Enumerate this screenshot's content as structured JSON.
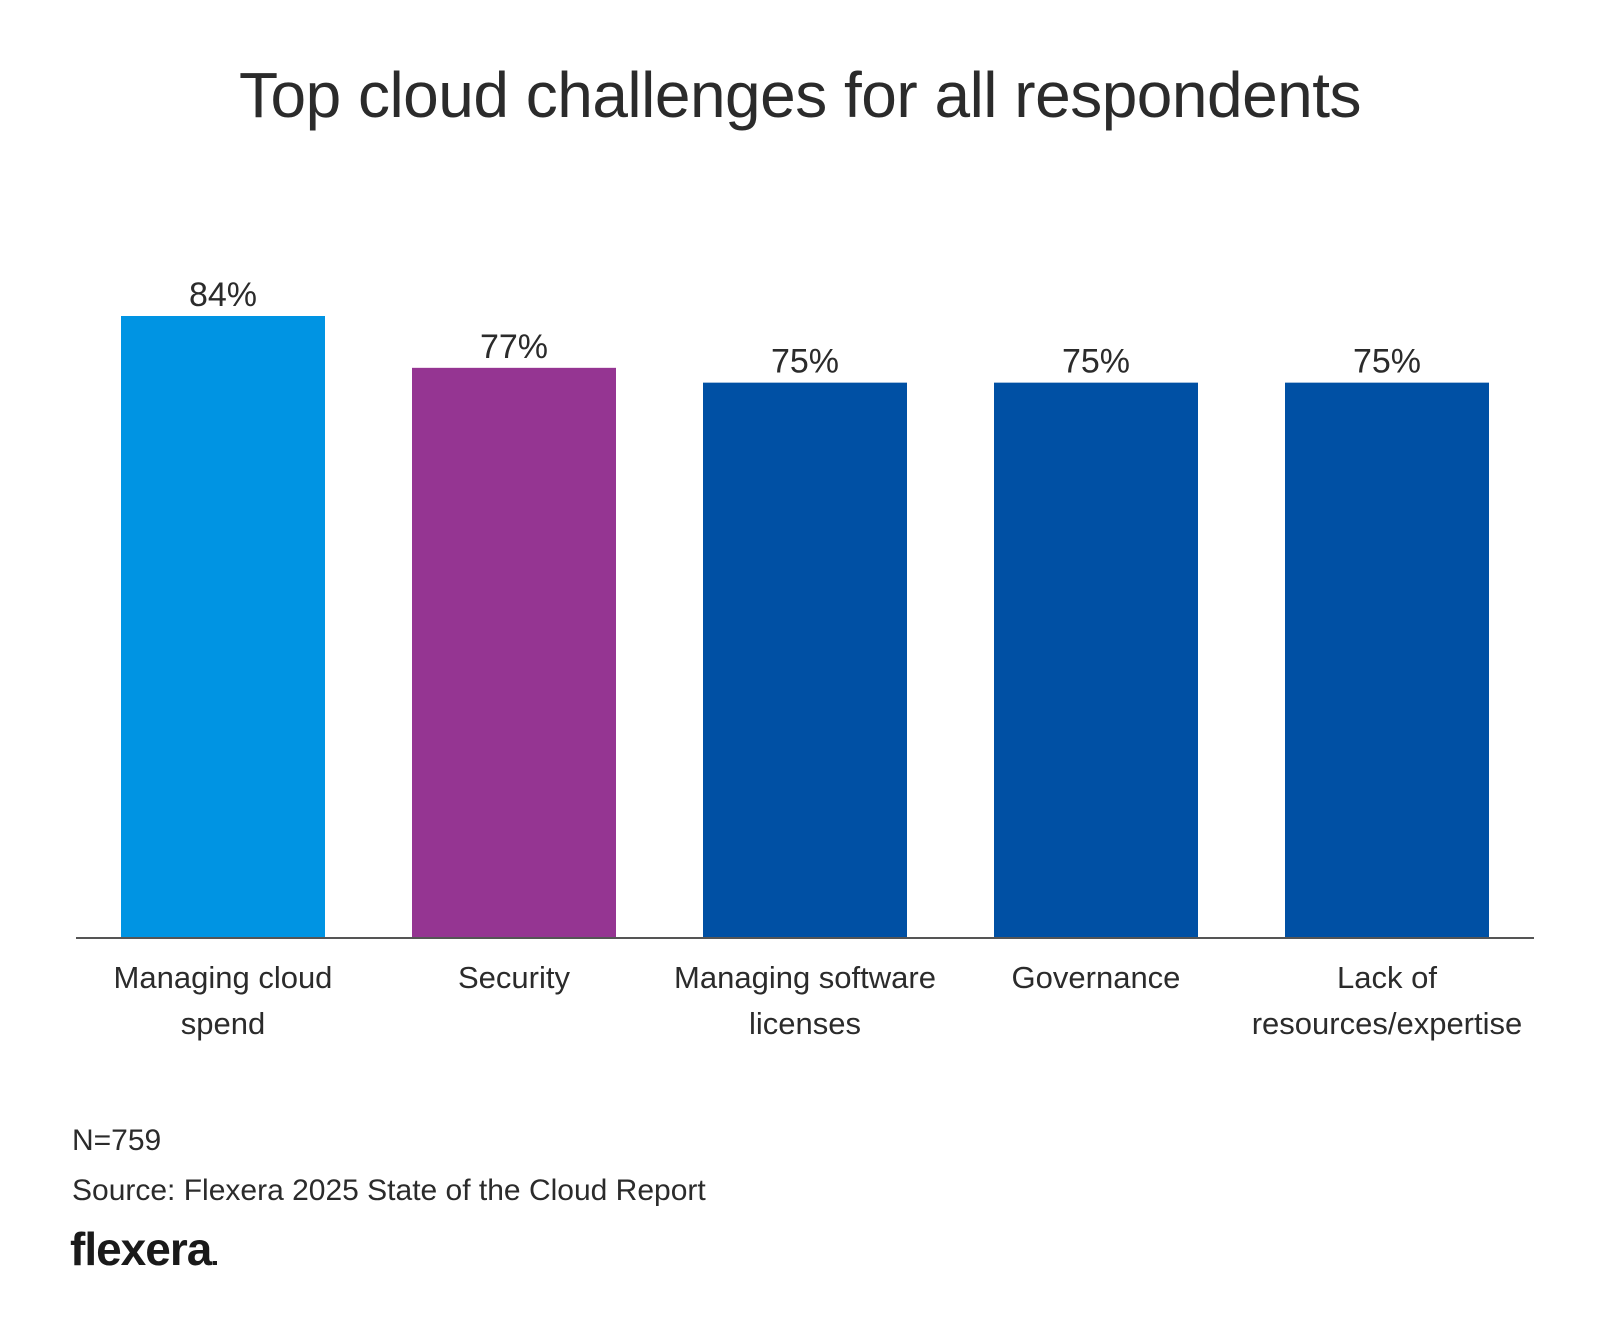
{
  "chart_data": {
    "type": "bar",
    "title": "Top cloud challenges for all respondents",
    "categories": [
      [
        "Managing cloud",
        "spend"
      ],
      [
        "Security"
      ],
      [
        "Managing software",
        "licenses"
      ],
      [
        "Governance"
      ],
      [
        "Lack of",
        "resources/expertise"
      ]
    ],
    "category_names": [
      "Managing cloud spend",
      "Security",
      "Managing software licenses",
      "Governance",
      "Lack of resources/expertise"
    ],
    "values": [
      84,
      77,
      75,
      75,
      75
    ],
    "value_labels": [
      "84%",
      "77%",
      "75%",
      "75%",
      "75%"
    ],
    "bar_colors": [
      "#0094e3",
      "#953592",
      "#0050a4",
      "#0050a4",
      "#0050a4"
    ],
    "ylim": [
      0,
      100
    ],
    "xlabel": "",
    "ylabel": "",
    "grid": false,
    "unit": "%"
  },
  "footnote": {
    "n": "N=759",
    "source": "Source: Flexera 2025 State of the Cloud Report"
  },
  "brand": {
    "name": "flexera"
  }
}
